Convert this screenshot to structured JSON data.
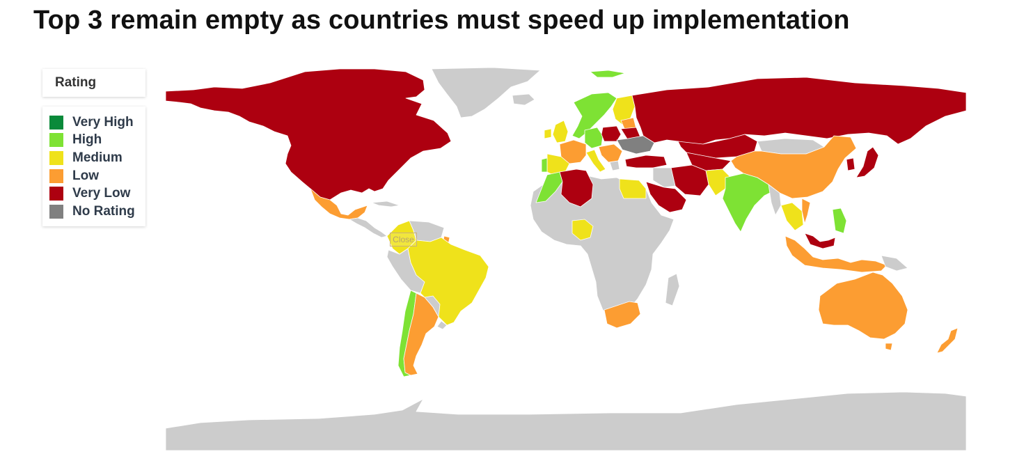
{
  "title": "Top 3 remain empty as countries must speed up implementation",
  "legend": {
    "header": "Rating",
    "items": [
      {
        "label": "Very High",
        "color": "#0a8a3a",
        "key": "very-high"
      },
      {
        "label": "High",
        "color": "#7ee234",
        "key": "high"
      },
      {
        "label": "Medium",
        "color": "#efe21b",
        "key": "medium"
      },
      {
        "label": "Low",
        "color": "#fc9d32",
        "key": "low"
      },
      {
        "label": "Very Low",
        "color": "#ad0010",
        "key": "very-low"
      },
      {
        "label": "No Rating",
        "color": "#808080",
        "key": "no-rating"
      }
    ]
  },
  "map": {
    "no_data_color": "#cccccc",
    "tooltip_close_label": "Close"
  }
}
